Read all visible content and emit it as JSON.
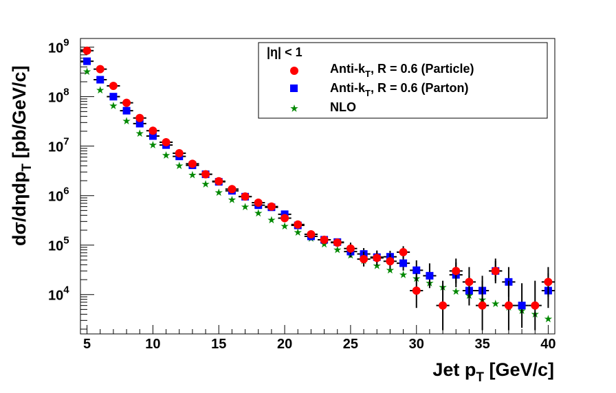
{
  "chart_data": {
    "type": "scatter",
    "xlabel": {
      "main": "Jet p",
      "sub": "T",
      "tail": " [GeV/c]"
    },
    "ylabel": {
      "main": "dσ/dηdp",
      "sub": "T",
      "tail": " [pb/GeV/c]"
    },
    "xlim": [
      4.5,
      40.5
    ],
    "ylim": [
      1600,
      1500000000
    ],
    "y_scale": "log",
    "x_tick_labels": [
      "5",
      "10",
      "15",
      "20",
      "25",
      "30",
      "35",
      "40"
    ],
    "y_tick_labels": [
      {
        "base": "10",
        "exp": "4"
      },
      {
        "base": "10",
        "exp": "5"
      },
      {
        "base": "10",
        "exp": "6"
      },
      {
        "base": "10",
        "exp": "7"
      },
      {
        "base": "10",
        "exp": "8"
      },
      {
        "base": "10",
        "exp": "9"
      }
    ],
    "grid": false,
    "legend_position": "top-right",
    "legend_header": "|η| < 1",
    "series": [
      {
        "name_main": "Anti-k",
        "name_sub": "T",
        "name_tail": ", R = 0.6 (Particle)",
        "marker": "circle",
        "color": "#ff0000",
        "points": [
          [
            5,
            850000000,
            0
          ],
          [
            6,
            360000000,
            0
          ],
          [
            7,
            165000000,
            0
          ],
          [
            8,
            75000000,
            0
          ],
          [
            9,
            37000000,
            0
          ],
          [
            10,
            20500000,
            0
          ],
          [
            11,
            12000000,
            0
          ],
          [
            12,
            7200000,
            0
          ],
          [
            13,
            4400000,
            0
          ],
          [
            14,
            2700000,
            0
          ],
          [
            15,
            1950000,
            0
          ],
          [
            16,
            1350000,
            0
          ],
          [
            17,
            960000,
            0
          ],
          [
            18,
            720000,
            0
          ],
          [
            19,
            600000,
            0
          ],
          [
            20,
            350000,
            0
          ],
          [
            21,
            260000,
            0
          ],
          [
            22,
            165000,
            0
          ],
          [
            23,
            128000,
            0
          ],
          [
            24,
            112000,
            0
          ],
          [
            25,
            85000,
            0.12
          ],
          [
            26,
            52000,
            0.15
          ],
          [
            27,
            55000,
            0.15
          ],
          [
            28,
            47000,
            0.15
          ],
          [
            29,
            72000,
            0.12
          ],
          [
            30,
            12000,
            0.35
          ],
          [
            32,
            6000,
            0.5
          ],
          [
            33,
            30000,
            0.25
          ],
          [
            34,
            18000,
            0.3
          ],
          [
            35,
            6000,
            0.5
          ],
          [
            36,
            30000,
            0.25
          ],
          [
            37,
            6000,
            0.5
          ],
          [
            39,
            6000,
            0.5
          ],
          [
            40,
            18000,
            0.3
          ]
        ]
      },
      {
        "name_main": "Anti-k",
        "name_sub": "T",
        "name_tail": ", R = 0.6 (Parton)",
        "marker": "square",
        "color": "#0000ff",
        "points": [
          [
            5,
            520000000,
            0
          ],
          [
            6,
            220000000,
            0
          ],
          [
            7,
            100000000,
            0
          ],
          [
            8,
            52000000,
            0
          ],
          [
            9,
            28500000,
            0
          ],
          [
            10,
            16000000,
            0
          ],
          [
            11,
            10500000,
            0
          ],
          [
            12,
            6200000,
            0
          ],
          [
            13,
            4100000,
            0
          ],
          [
            14,
            2700000,
            0
          ],
          [
            15,
            1900000,
            0
          ],
          [
            16,
            1250000,
            0
          ],
          [
            17,
            950000,
            0
          ],
          [
            18,
            640000,
            0
          ],
          [
            19,
            580000,
            0
          ],
          [
            20,
            420000,
            0
          ],
          [
            21,
            250000,
            0
          ],
          [
            22,
            150000,
            0
          ],
          [
            23,
            128000,
            0
          ],
          [
            24,
            115000,
            0
          ],
          [
            25,
            74000,
            0.12
          ],
          [
            26,
            66000,
            0.12
          ],
          [
            27,
            57000,
            0.12
          ],
          [
            28,
            58000,
            0.12
          ],
          [
            29,
            43000,
            0.15
          ],
          [
            30,
            31000,
            0.2
          ],
          [
            31,
            24000,
            0.25
          ],
          [
            33,
            25000,
            0.25
          ],
          [
            34,
            12000,
            0.3
          ],
          [
            35,
            12000,
            0.3
          ],
          [
            36,
            30000,
            0.2
          ],
          [
            37,
            18000,
            0.3
          ],
          [
            38,
            6000,
            0.45
          ],
          [
            40,
            12000,
            0.35
          ]
        ]
      },
      {
        "name_main": "NLO",
        "name_sub": "",
        "name_tail": "",
        "marker": "star",
        "color": "#008800",
        "points": [
          [
            5,
            320000000
          ],
          [
            6,
            135000000
          ],
          [
            7,
            65000000
          ],
          [
            8,
            32000000
          ],
          [
            9,
            18000000
          ],
          [
            10,
            10500000
          ],
          [
            11,
            6500000
          ],
          [
            12,
            4000000
          ],
          [
            13,
            2600000
          ],
          [
            14,
            1700000
          ],
          [
            15,
            1150000
          ],
          [
            16,
            820000
          ],
          [
            17,
            590000
          ],
          [
            18,
            440000
          ],
          [
            19,
            320000
          ],
          [
            20,
            240000
          ],
          [
            21,
            180000
          ],
          [
            22,
            136000
          ],
          [
            23,
            104000
          ],
          [
            24,
            80000
          ],
          [
            25,
            62000
          ],
          [
            26,
            48000
          ],
          [
            27,
            38000
          ],
          [
            28,
            31000
          ],
          [
            29,
            25000
          ],
          [
            30,
            21000
          ],
          [
            31,
            17000
          ],
          [
            32,
            14000
          ],
          [
            33,
            11500
          ],
          [
            34,
            9500
          ],
          [
            35,
            7800
          ],
          [
            36,
            6500
          ],
          [
            37,
            5500
          ],
          [
            38,
            4700
          ],
          [
            39,
            4000
          ],
          [
            40,
            3200
          ]
        ]
      }
    ]
  }
}
